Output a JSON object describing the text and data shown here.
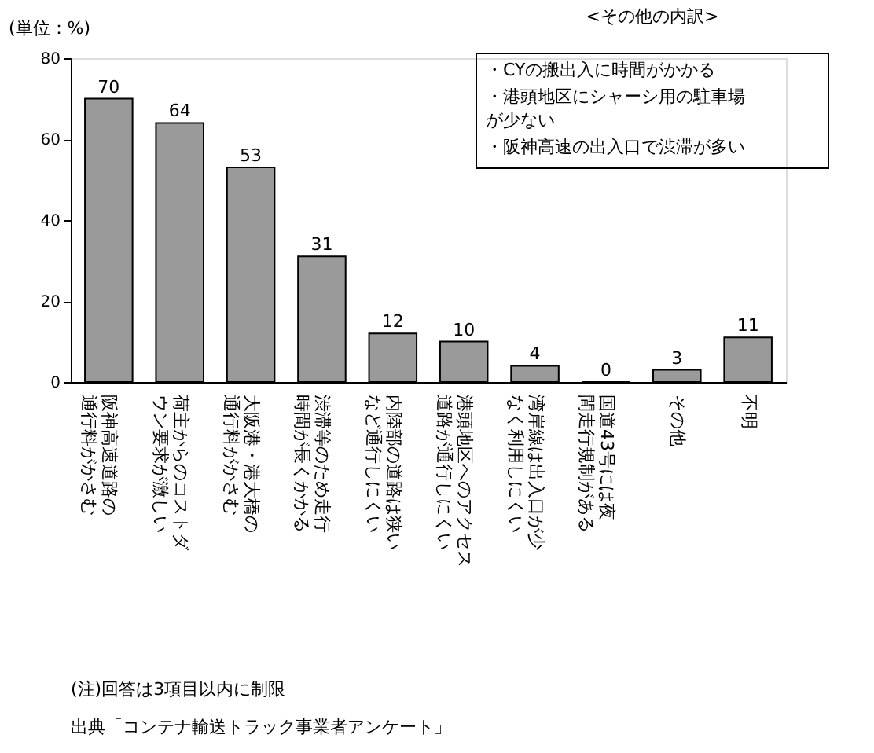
{
  "chart_data": {
    "type": "bar",
    "ylabel": "(単位：%)",
    "categories": [
      "阪神高速道路の通行料がかさむ",
      "荷主からのコストダウン要求が激しい",
      "大阪港・港大橋の通行料がかさむ",
      "渋滞等のため走行時間が長くかかる",
      "内陸部の道路は狭いなど通行しにくい",
      "港頭地区へのアクセス道路が通行しにくい",
      "湾岸線は出入口が少なく利用しにくい",
      "国道43号には夜間走行規制がある",
      "その他",
      "不明"
    ],
    "values": [
      70,
      64,
      53,
      31,
      12,
      10,
      4,
      0,
      3,
      11
    ],
    "color": "#9a9a9a",
    "data_labels": true,
    "ylim": [
      0,
      80
    ],
    "yticks": [
      0,
      20,
      40,
      60,
      80
    ],
    "grid": false,
    "annotations": [
      "<その他の内訳>",
      "・CYの搬出入に時間がかかる",
      "・港頭地区にシャーシ用の駐車場が少ない",
      "・阪神高速の出入口で渋滞が多い",
      "(注)回答は3項目以内に制限",
      "出典「コンテナ輸送トラック事業者アンケート」"
    ]
  }
}
